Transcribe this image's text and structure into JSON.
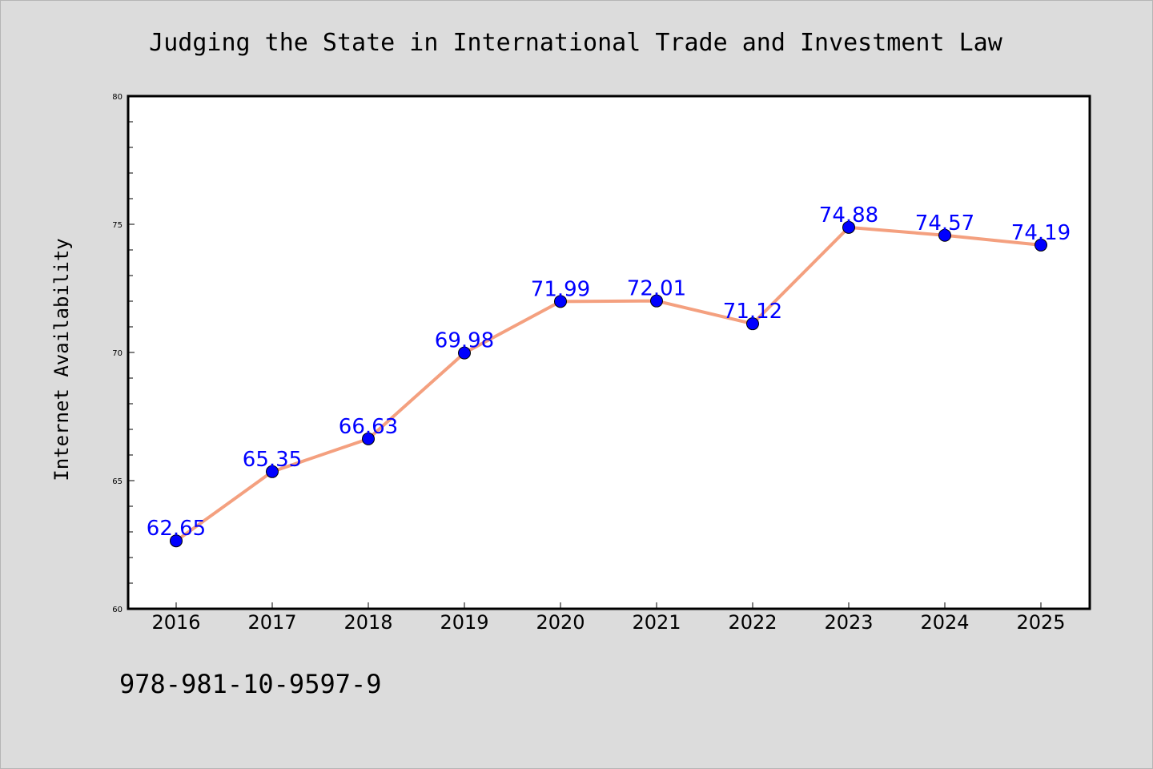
{
  "chart_data": {
    "type": "line",
    "title": "Judging the State in International Trade and Investment Law",
    "xlabel": "",
    "ylabel": "Internet Availability",
    "categories": [
      "2016",
      "2017",
      "2018",
      "2019",
      "2020",
      "2021",
      "2022",
      "2023",
      "2024",
      "2025"
    ],
    "values": [
      62.65,
      65.35,
      66.63,
      69.98,
      71.99,
      72.01,
      71.12,
      74.88,
      74.57,
      74.19
    ],
    "data_labels": [
      "62.65",
      "65.35",
      "66.63",
      "69.98",
      "71.99",
      "72.01",
      "71.12",
      "74.88",
      "74.57",
      "74.19"
    ],
    "ylim": [
      60,
      80
    ],
    "yticks": [
      "60",
      "65",
      "70",
      "75",
      "80"
    ],
    "grid": false,
    "line_color": "#f4a07f",
    "marker_color": "#0000ff",
    "label_color": "#0000ff",
    "background_color": "#dcdcdc",
    "plot_background_color": "#ffffff"
  },
  "footer": {
    "isbn": "978-981-10-9597-9"
  }
}
